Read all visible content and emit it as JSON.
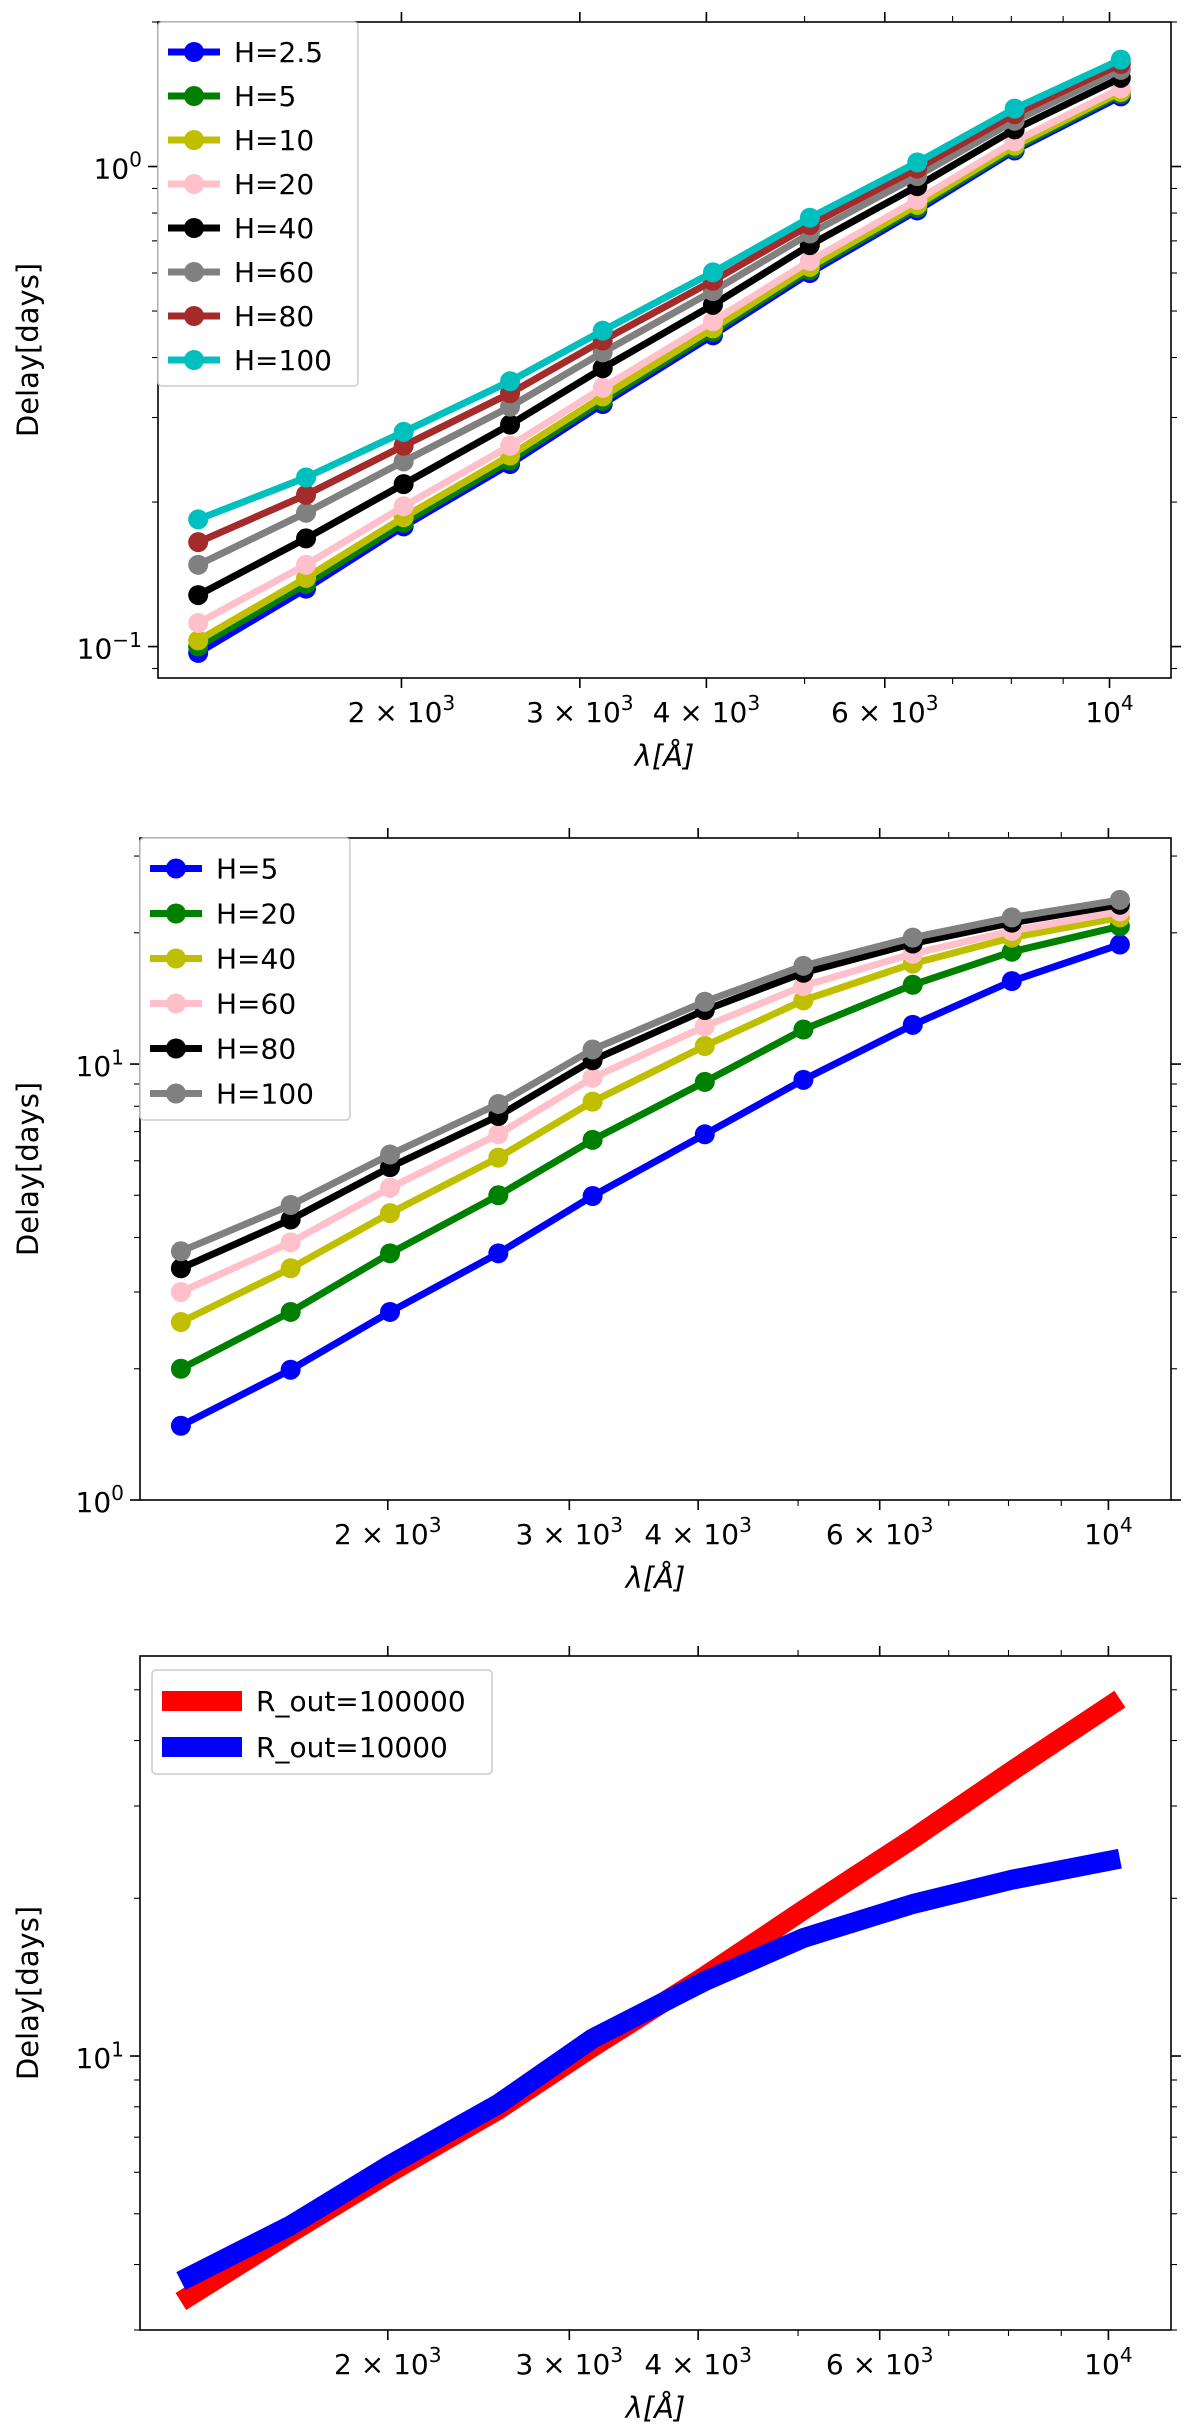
{
  "chart_data": [
    {
      "type": "line",
      "xscale": "log",
      "yscale": "log",
      "title": "",
      "xlabel": "λ[Å]",
      "ylabel": "Delay[days]",
      "xlim": [
        1150,
        11500
      ],
      "ylim": [
        0.086,
        2.0
      ],
      "x": [
        1260,
        1610,
        2010,
        2560,
        3160,
        4060,
        5060,
        6460,
        8060,
        10260
      ],
      "x_ticks": [
        {
          "value": 2000,
          "label": "2 × 10^3"
        },
        {
          "value": 3000,
          "label": "3 × 10^3"
        },
        {
          "value": 4000,
          "label": "4 × 10^3"
        },
        {
          "value": 6000,
          "label": "6 × 10^3"
        },
        {
          "value": 10000,
          "label": "10^4"
        }
      ],
      "y_ticks": [
        {
          "value": 0.1,
          "label": "10^−1"
        },
        {
          "value": 1,
          "label": "10^0"
        }
      ],
      "legend_position": "top-left",
      "series": [
        {
          "name": "H=2.5",
          "color": "#0000ff",
          "values": [
            0.097,
            0.132,
            0.178,
            0.24,
            0.32,
            0.445,
            0.6,
            0.81,
            1.08,
            1.4
          ]
        },
        {
          "name": "H=5",
          "color": "#008000",
          "values": [
            0.1,
            0.135,
            0.181,
            0.244,
            0.325,
            0.452,
            0.608,
            0.82,
            1.09,
            1.415
          ]
        },
        {
          "name": "H=10",
          "color": "#bfbf00",
          "values": [
            0.103,
            0.139,
            0.186,
            0.25,
            0.332,
            0.46,
            0.618,
            0.832,
            1.105,
            1.43
          ]
        },
        {
          "name": "H=20",
          "color": "#ffc0cb",
          "values": [
            0.112,
            0.148,
            0.196,
            0.262,
            0.346,
            0.476,
            0.636,
            0.852,
            1.128,
            1.455
          ]
        },
        {
          "name": "H=40",
          "color": "#000000",
          "values": [
            0.128,
            0.168,
            0.218,
            0.29,
            0.38,
            0.515,
            0.686,
            0.91,
            1.195,
            1.53
          ]
        },
        {
          "name": "H=60",
          "color": "#808080",
          "values": [
            0.148,
            0.19,
            0.243,
            0.316,
            0.41,
            0.55,
            0.725,
            0.955,
            1.245,
            1.59
          ]
        },
        {
          "name": "H=80",
          "color": "#a52a2a",
          "values": [
            0.165,
            0.207,
            0.262,
            0.337,
            0.434,
            0.578,
            0.755,
            0.99,
            1.285,
            1.635
          ]
        },
        {
          "name": "H=100",
          "color": "#00bfbf",
          "values": [
            0.184,
            0.225,
            0.28,
            0.357,
            0.455,
            0.602,
            0.782,
            1.02,
            1.32,
            1.67
          ]
        }
      ]
    },
    {
      "type": "line",
      "xscale": "log",
      "yscale": "log",
      "title": "",
      "xlabel": "λ[Å]",
      "ylabel": "Delay[days]",
      "xlim": [
        1150,
        11500
      ],
      "ylim": [
        1.0,
        33.0
      ],
      "x": [
        1260,
        1610,
        2010,
        2560,
        3160,
        4060,
        5060,
        6460,
        8060,
        10260
      ],
      "x_ticks": [
        {
          "value": 2000,
          "label": "2 × 10^3"
        },
        {
          "value": 3000,
          "label": "3 × 10^3"
        },
        {
          "value": 4000,
          "label": "4 × 10^3"
        },
        {
          "value": 6000,
          "label": "6 × 10^3"
        },
        {
          "value": 10000,
          "label": "10^4"
        }
      ],
      "y_ticks": [
        {
          "value": 1,
          "label": "10^0"
        },
        {
          "value": 10,
          "label": "10^1"
        }
      ],
      "legend_position": "top-left",
      "series": [
        {
          "name": "H=5",
          "color": "#0000ff",
          "values": [
            1.48,
            1.99,
            2.7,
            3.68,
            4.98,
            6.9,
            9.2,
            12.3,
            15.5,
            18.8
          ]
        },
        {
          "name": "H=20",
          "color": "#008000",
          "values": [
            2.0,
            2.7,
            3.68,
            5.0,
            6.7,
            9.1,
            12.0,
            15.2,
            18.1,
            20.7
          ]
        },
        {
          "name": "H=40",
          "color": "#bfbf00",
          "values": [
            2.56,
            3.4,
            4.55,
            6.1,
            8.2,
            11.0,
            14.0,
            17.0,
            19.5,
            21.7
          ]
        },
        {
          "name": "H=60",
          "color": "#ffc0cb",
          "values": [
            3.0,
            3.9,
            5.2,
            6.9,
            9.3,
            12.2,
            15.1,
            17.9,
            20.2,
            22.4
          ]
        },
        {
          "name": "H=80",
          "color": "#000000",
          "values": [
            3.4,
            4.4,
            5.8,
            7.6,
            10.2,
            13.3,
            16.2,
            18.9,
            21.1,
            23.2
          ]
        },
        {
          "name": "H=100",
          "color": "#808080",
          "values": [
            3.72,
            4.75,
            6.2,
            8.1,
            10.8,
            13.9,
            16.8,
            19.5,
            21.7,
            23.8
          ]
        }
      ]
    },
    {
      "type": "line",
      "xscale": "log",
      "yscale": "log",
      "title": "",
      "xlabel": "λ[Å]",
      "ylabel": "Delay[days]",
      "xlim": [
        1150,
        11500
      ],
      "ylim": [
        3.0,
        58.0
      ],
      "x": [
        1260,
        1610,
        2010,
        2560,
        3160,
        4060,
        5060,
        6460,
        8060,
        10260
      ],
      "x_ticks": [
        {
          "value": 2000,
          "label": "2 × 10^3"
        },
        {
          "value": 3000,
          "label": "3 × 10^3"
        },
        {
          "value": 4000,
          "label": "4 × 10^3"
        },
        {
          "value": 6000,
          "label": "6 × 10^3"
        },
        {
          "value": 10000,
          "label": "10^4"
        }
      ],
      "y_ticks": [
        {
          "value": 10,
          "label": "10^1"
        }
      ],
      "legend_position": "top-left",
      "series": [
        {
          "name": "R_out=100000",
          "color": "#ff0000",
          "values": [
            3.4,
            4.6,
            6.0,
            7.9,
            10.4,
            14.2,
            19.0,
            26.0,
            35.0,
            48.0
          ]
        },
        {
          "name": "R_out=10000",
          "color": "#0000ff",
          "values": [
            3.72,
            4.75,
            6.2,
            8.1,
            10.8,
            13.9,
            16.8,
            19.5,
            21.7,
            23.8
          ]
        }
      ]
    }
  ]
}
